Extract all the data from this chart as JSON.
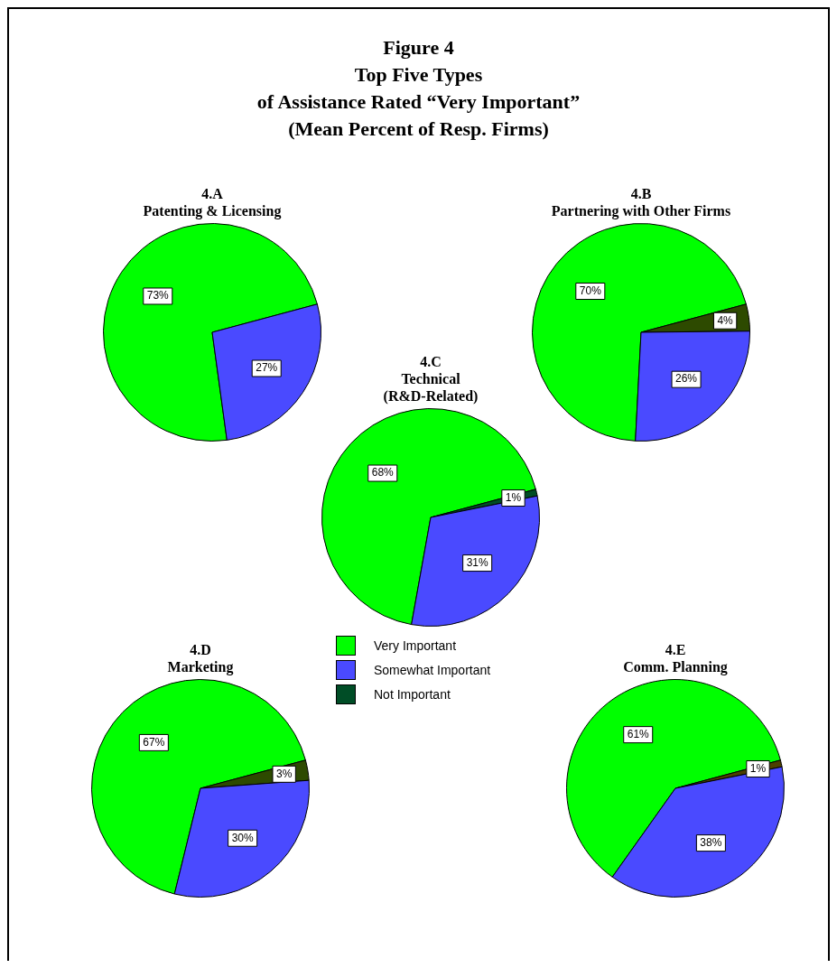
{
  "chart_data": [
    {
      "type": "other",
      "title": "Figure 4\nTop Five Types\nof Assistance Rated “Very Important”\n(Mean Percent of Resp. Firms)"
    },
    {
      "type": "pie",
      "title": "4.A",
      "subtitle": "Patenting & Licensing",
      "categories": [
        null,
        null,
        null
      ],
      "values": [
        73,
        27,
        0
      ],
      "value_labels": [
        "73%",
        "27%",
        null
      ],
      "colors": [
        "#00ff00",
        "#4a4aff",
        "#2d4a00"
      ],
      "legend": false
    },
    {
      "type": "pie",
      "title": "4.B",
      "subtitle": "Partnering with Other Firms",
      "categories": [
        null,
        null,
        null
      ],
      "values": [
        70,
        26,
        4
      ],
      "value_labels": [
        "70%",
        "26%",
        "4%"
      ],
      "colors": [
        "#00ff00",
        "#4a4aff",
        "#2d4a00"
      ],
      "legend": false
    },
    {
      "type": "pie",
      "title": "4.C",
      "subtitle": "Technical\n(R&D-Related)",
      "categories": [
        "Very Important",
        "Somewhat Important",
        "Not Important"
      ],
      "values": [
        68,
        31,
        1
      ],
      "value_labels": [
        "68%",
        "31%",
        "1%"
      ],
      "colors": [
        "#00ff00",
        "#4a4aff",
        "#004d26"
      ],
      "legend": "bottom"
    },
    {
      "type": "pie",
      "title": "4.D",
      "subtitle": "Marketing",
      "categories": [
        null,
        null,
        null
      ],
      "values": [
        67,
        30,
        3
      ],
      "value_labels": [
        "67%",
        "30%",
        "3%"
      ],
      "colors": [
        "#00ff00",
        "#4a4aff",
        "#2d4a00"
      ],
      "legend": false
    },
    {
      "type": "pie",
      "title": "4.E",
      "subtitle": "Comm. Planning",
      "categories": [
        null,
        null,
        null
      ],
      "values": [
        61,
        38,
        1
      ],
      "value_labels": [
        "61%",
        "38%",
        "1%"
      ],
      "colors": [
        "#00ff00",
        "#4a4aff",
        "#4d4000"
      ],
      "legend": false
    }
  ]
}
